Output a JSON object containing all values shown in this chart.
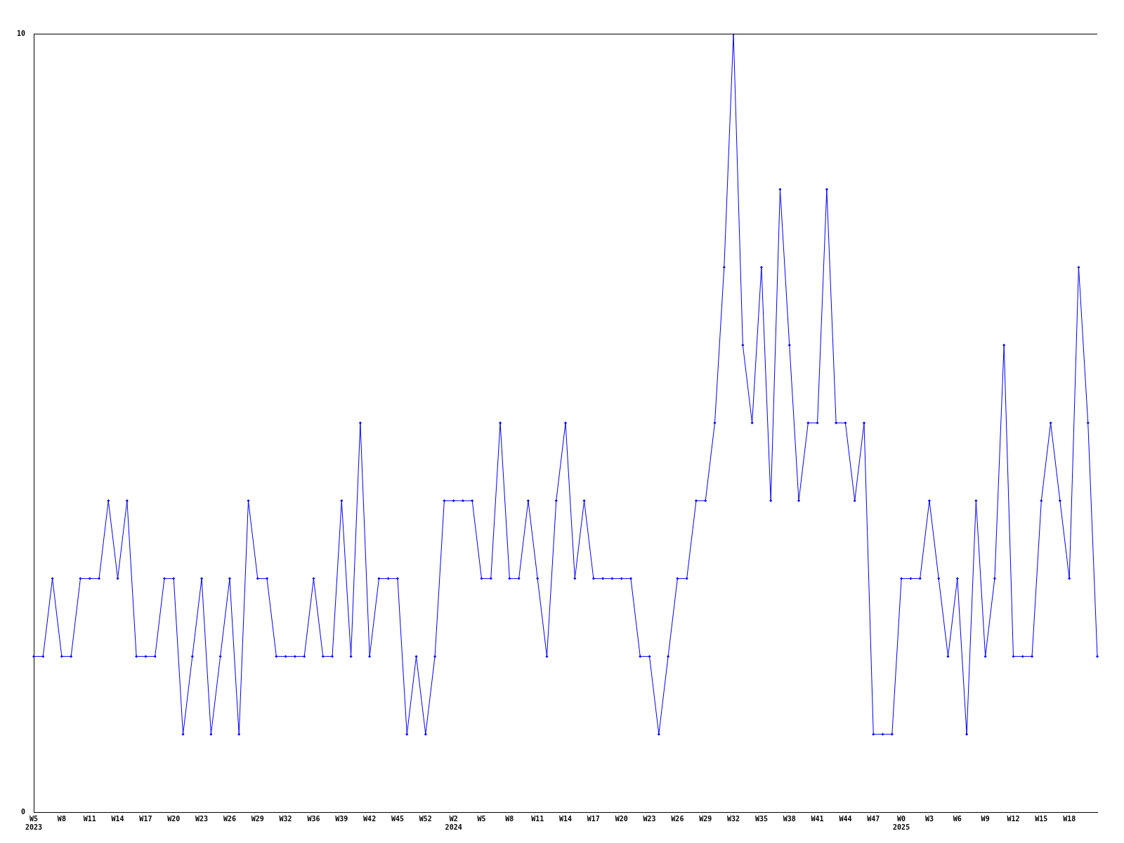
{
  "chart_data": {
    "type": "line",
    "categories": [
      "W5\n2023",
      null,
      null,
      "W8",
      null,
      null,
      "W11",
      null,
      null,
      "W14",
      null,
      null,
      "W17",
      null,
      null,
      "W20",
      null,
      null,
      "W23",
      null,
      null,
      "W26",
      null,
      null,
      "W29",
      null,
      null,
      "W32",
      null,
      null,
      "W36",
      null,
      null,
      "W39",
      null,
      null,
      "W42",
      null,
      null,
      "W45",
      null,
      null,
      "W52",
      null,
      null,
      "W2\n2024",
      null,
      null,
      "W5",
      null,
      null,
      "W8",
      null,
      null,
      "W11",
      null,
      null,
      "W14",
      null,
      null,
      "W17",
      null,
      null,
      "W20",
      null,
      null,
      "W23",
      null,
      null,
      "W26",
      null,
      null,
      "W29",
      null,
      null,
      "W32",
      null,
      null,
      "W35",
      null,
      null,
      "W38",
      null,
      null,
      "W41",
      null,
      null,
      "W44",
      null,
      null,
      "W47",
      null,
      null,
      "W0\n2025",
      null,
      null,
      "W3",
      null,
      null,
      "W6",
      null,
      null,
      "W9",
      null,
      null,
      "W12",
      null,
      null,
      "W15",
      null,
      null,
      "W18",
      null,
      null,
      null
    ],
    "series": [
      {
        "color": "#0000ff",
        "values": [
          2,
          2,
          3,
          2,
          2,
          3,
          3,
          3,
          4,
          3,
          4,
          2,
          2,
          2,
          3,
          3,
          1,
          2,
          3,
          1,
          2,
          3,
          1,
          4,
          3,
          3,
          2,
          2,
          2,
          2,
          3,
          2,
          2,
          4,
          2,
          5,
          2,
          3,
          3,
          3,
          1,
          2,
          1,
          2,
          4,
          4,
          4,
          4,
          3,
          3,
          5,
          3,
          3,
          4,
          3,
          2,
          4,
          5,
          3,
          4,
          3,
          3,
          3,
          3,
          3,
          2,
          2,
          1,
          2,
          3,
          3,
          4,
          4,
          5,
          7,
          10,
          6,
          5,
          7,
          4,
          8,
          6,
          4,
          5,
          5,
          8,
          5,
          5,
          4,
          5,
          1,
          1,
          1,
          3,
          3,
          3,
          4,
          3,
          2,
          3,
          1,
          4,
          2,
          3,
          6,
          2,
          2,
          2,
          4,
          5,
          4,
          3,
          7,
          5,
          2
        ]
      }
    ],
    "ylim": [
      0,
      10
    ],
    "yticks": [
      0,
      10
    ],
    "grid": false,
    "legend": false,
    "marker": "diamond",
    "line_style": "solid"
  }
}
